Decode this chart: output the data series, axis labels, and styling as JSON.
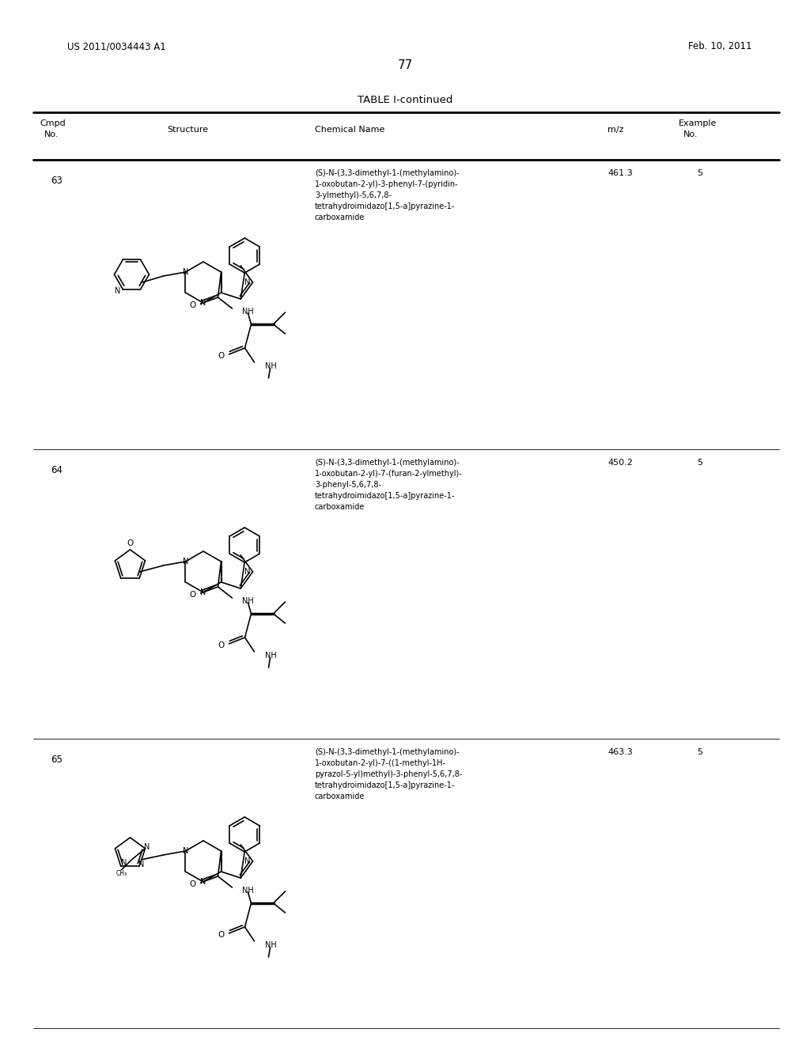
{
  "page_number": "77",
  "patent_number": "US 2011/0034443 A1",
  "patent_date": "Feb. 10, 2011",
  "table_title": "TABLE I-continued",
  "background_color": "#ffffff",
  "text_color": "#000000",
  "rows": [
    {
      "cmpd_no": "63",
      "chemical_name": "(S)-N-(3,3-dimethyl-1-(methylamino)-\n1-oxobutan-2-yl)-3-phenyl-7-(pyridin-\n3-ylmethyl)-5,6,7,8-\ntetrahydroimidazo[1,5-a]pyrazine-1-\ncarboxamide",
      "mz": "461.3",
      "example_no": "5"
    },
    {
      "cmpd_no": "64",
      "chemical_name": "(S)-N-(3,3-dimethyl-1-(methylamino)-\n1-oxobutan-2-yl)-7-(furan-2-ylmethyl)-\n3-phenyl-5,6,7,8-\ntetrahydroimidazo[1,5-a]pyrazine-1-\ncarboxamide",
      "mz": "450.2",
      "example_no": "5"
    },
    {
      "cmpd_no": "65",
      "chemical_name": "(S)-N-(3,3-dimethyl-1-(methylamino)-\n1-oxobutan-2-yl)-7-((1-methyl-1H-\npyrazol-5-yl)methyl)-3-phenyl-5,6,7,8-\ntetrahydroimidazo[1,5-a]pyrazine-1-\ncarboxamide",
      "mz": "463.3",
      "example_no": "5"
    }
  ]
}
